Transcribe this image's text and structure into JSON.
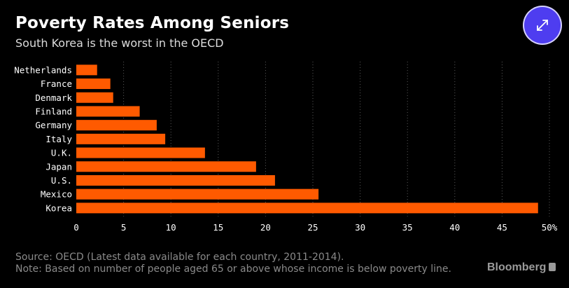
{
  "header": {
    "title": "Poverty Rates Among Seniors",
    "subtitle": "South Korea is the worst in the OECD"
  },
  "expand_button": {
    "icon": "expand-arrows-icon",
    "color": "#4e3df0"
  },
  "chart_data": {
    "type": "bar",
    "orientation": "horizontal",
    "categories": [
      "Netherlands",
      "France",
      "Denmark",
      "Finland",
      "Germany",
      "Italy",
      "U.K.",
      "Japan",
      "U.S.",
      "Mexico",
      "Korea"
    ],
    "values": [
      2.2,
      3.6,
      3.9,
      6.7,
      8.5,
      9.4,
      13.6,
      19.0,
      21.0,
      25.6,
      48.8
    ],
    "x_ticks": [
      "0",
      "5",
      "10",
      "15",
      "20",
      "25",
      "30",
      "35",
      "40",
      "45",
      "50%"
    ],
    "xlim": [
      0,
      50
    ],
    "grid": "vertical dotted",
    "bar_color": "#ff5a00"
  },
  "footer": {
    "source": "Source: OECD (Latest data available for each country, 2011-2014).",
    "note": "Note: Based on number of people aged 65 or above whose income is below poverty line."
  },
  "brand": {
    "name": "Bloomberg"
  }
}
